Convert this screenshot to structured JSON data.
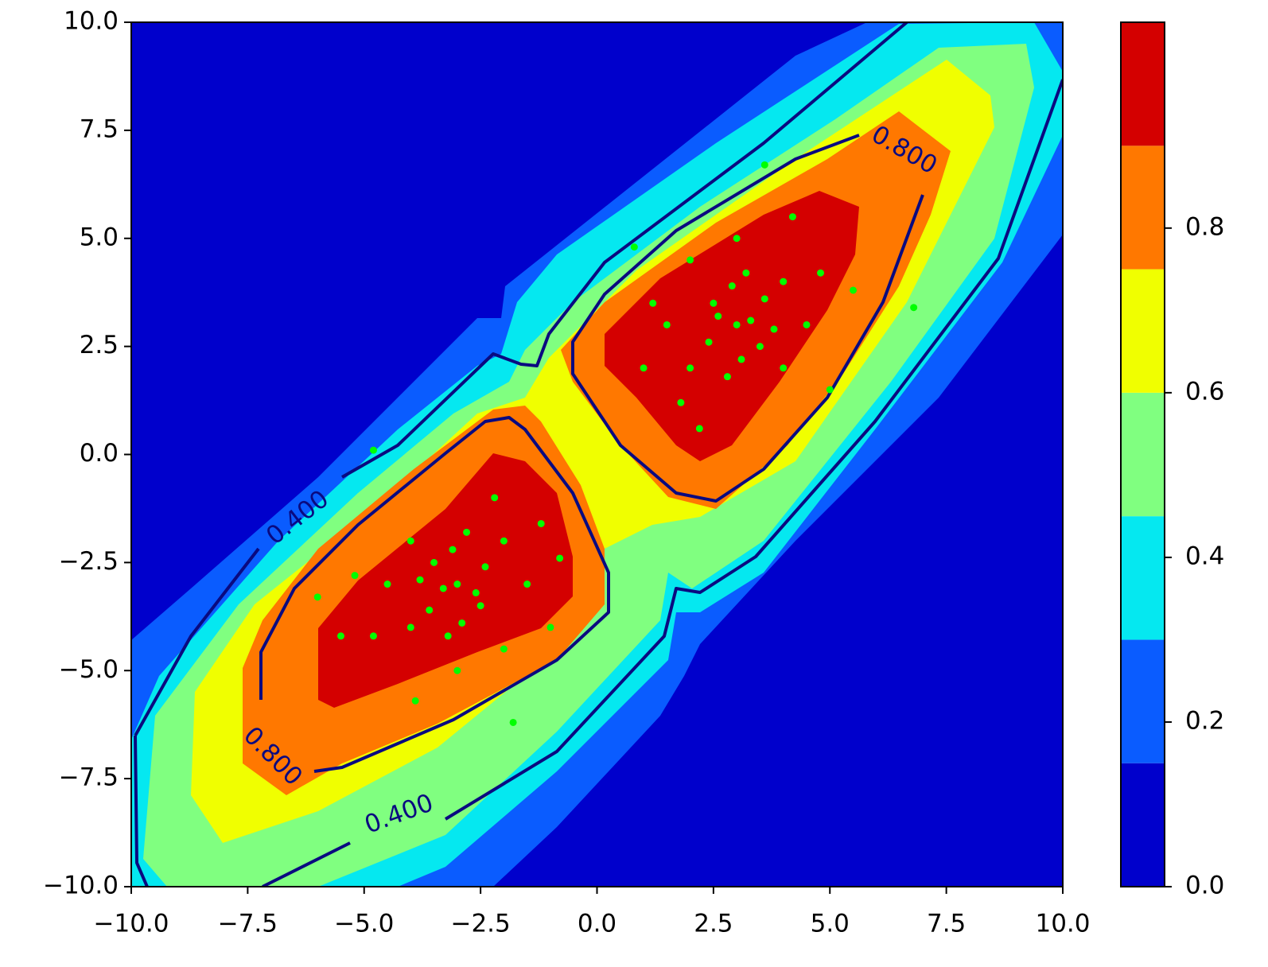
{
  "chart_data": {
    "type": "contourf",
    "xlim": [
      -10,
      10
    ],
    "ylim": [
      -10,
      10
    ],
    "xticks": [
      {
        "value": -10,
        "label": "−10.0"
      },
      {
        "value": -7.5,
        "label": "−7.5"
      },
      {
        "value": -5,
        "label": "−5.0"
      },
      {
        "value": -2.5,
        "label": "−2.5"
      },
      {
        "value": 0,
        "label": "0.0"
      },
      {
        "value": 2.5,
        "label": "2.5"
      },
      {
        "value": 5,
        "label": "5.0"
      },
      {
        "value": 7.5,
        "label": "7.5"
      },
      {
        "value": 10,
        "label": "10.0"
      }
    ],
    "yticks": [
      {
        "value": -10,
        "label": "−10.0"
      },
      {
        "value": -7.5,
        "label": "−7.5"
      },
      {
        "value": -5,
        "label": "−5.0"
      },
      {
        "value": -2.5,
        "label": "−2.5"
      },
      {
        "value": 0,
        "label": "0.0"
      },
      {
        "value": 2.5,
        "label": "2.5"
      },
      {
        "value": 5,
        "label": "5.0"
      },
      {
        "value": 7.5,
        "label": "7.5"
      },
      {
        "value": 10,
        "label": "10.0"
      }
    ],
    "levels": [
      0,
      0.15,
      0.3,
      0.45,
      0.6,
      0.75,
      0.9,
      1.05
    ],
    "colors": [
      "#0000cc",
      "#0a5cff",
      "#05e8f0",
      "#80ff80",
      "#f0ff00",
      "#ff7800",
      "#d40000"
    ],
    "clim": [
      0,
      1.05
    ],
    "cticks": [
      {
        "value": 0,
        "label": "0.0"
      },
      0.2,
      0.4,
      0.6,
      0.8
    ],
    "contour_lines": {
      "color": "#0a0a80",
      "values": [
        0.4,
        0.8
      ],
      "value_labels": [
        "0.400",
        "0.800"
      ]
    },
    "scatter": {
      "color": "#00ff00",
      "x": [
        3,
        2.5,
        3.5,
        2,
        4,
        3.2,
        2.8,
        1.5,
        4.5,
        3,
        2,
        4,
        3.6,
        2.4,
        1.8,
        4.8,
        3.1,
        2.9,
        1.2,
        5,
        0.8,
        3.6,
        6.8,
        2.2,
        4.2,
        3.3,
        2.6,
        3.8,
        1,
        5.5,
        -3,
        -3.5,
        -2.5,
        -4,
        -2,
        -3.2,
        -2.8,
        -4.5,
        -1.5,
        -3,
        -4,
        -2,
        -3.6,
        -2.4,
        -4.8,
        -1.2,
        -3.1,
        -2.9,
        -5.2,
        -1,
        -4.8,
        -1.8,
        -6,
        -3.9,
        -2.2,
        -3.3,
        -2.6,
        -3.8,
        -0.8,
        -5.5
      ],
      "y": [
        3,
        3.5,
        2.5,
        2,
        4,
        4.2,
        1.8,
        3,
        3,
        5,
        4.5,
        2,
        3.6,
        2.6,
        1.2,
        4.2,
        2.2,
        3.9,
        3.5,
        1.5,
        4.8,
        6.7,
        3.4,
        0.6,
        5.5,
        3.1,
        3.2,
        2.9,
        2,
        3.8,
        -3,
        -2.5,
        -3.5,
        -4,
        -2,
        -4.2,
        -1.8,
        -3,
        -3,
        -5,
        -2,
        -4.5,
        -3.6,
        -2.6,
        -4.2,
        -1.6,
        -2.2,
        -3.9,
        -2.8,
        -4,
        0.1,
        -6.2,
        -3.3,
        -5.7,
        -1,
        -3.1,
        -3.2,
        -2.9,
        -2.4,
        -4.2
      ]
    }
  }
}
